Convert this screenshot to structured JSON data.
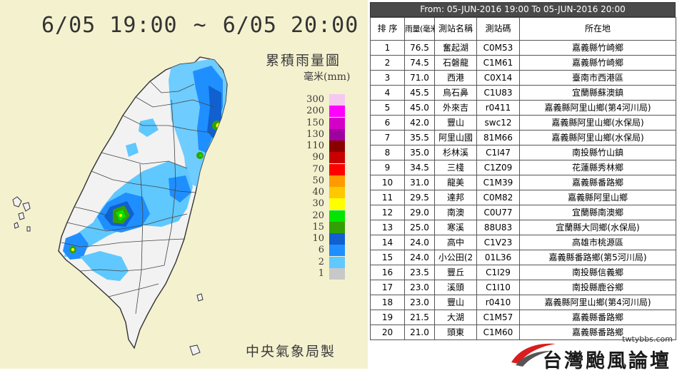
{
  "map": {
    "title_start": "6/05 19:00",
    "title_sep": "~",
    "title_end": "6/05 20:00",
    "legend_title": "累積雨量圖",
    "legend_unit": "毫米(mm)",
    "credit": "中央氣象局製",
    "legend": [
      {
        "label": "300",
        "color": "#f5c8f0"
      },
      {
        "label": "200",
        "color": "#ff00ff"
      },
      {
        "label": "150",
        "color": "#d400c8"
      },
      {
        "label": "130",
        "color": "#a000a0"
      },
      {
        "label": "110",
        "color": "#8a0000"
      },
      {
        "label": "90",
        "color": "#c80000"
      },
      {
        "label": "70",
        "color": "#ff0000"
      },
      {
        "label": "50",
        "color": "#ff9a00"
      },
      {
        "label": "40",
        "color": "#ffc800"
      },
      {
        "label": "30",
        "color": "#ffff00"
      },
      {
        "label": "20",
        "color": "#00e600"
      },
      {
        "label": "15",
        "color": "#32a000"
      },
      {
        "label": "10",
        "color": "#1060d0"
      },
      {
        "label": "6",
        "color": "#1f8fff"
      },
      {
        "label": "2",
        "color": "#5fc8ff"
      },
      {
        "label": "1",
        "color": "#c8c8c8"
      }
    ]
  },
  "table": {
    "header": "From: 05-JUN-2016 19:00 To 05-JUN-2016 20:00",
    "columns": [
      "排 序",
      "雨量(毫米)",
      "測站名稱",
      "測站碼",
      "所在地"
    ],
    "rows": [
      [
        "1",
        "76.5",
        "奮起湖",
        "C0M53",
        "嘉義縣竹崎鄉"
      ],
      [
        "2",
        "74.5",
        "石磐龍",
        "C1M61",
        "嘉義縣竹崎鄉"
      ],
      [
        "3",
        "71.0",
        "西港",
        "C0X14",
        "臺南市西港區"
      ],
      [
        "4",
        "45.5",
        "烏石鼻",
        "C1U83",
        "宜蘭縣蘇澳鎮"
      ],
      [
        "5",
        "45.0",
        "外來吉",
        "r0411",
        "嘉義縣阿里山鄉(第4河川局)"
      ],
      [
        "6",
        "42.0",
        "豐山",
        "swc12",
        "嘉義縣阿里山鄉(水保局)"
      ],
      [
        "7",
        "35.5",
        "阿里山國",
        "81M66",
        "嘉義縣阿里山鄉(水保局)"
      ],
      [
        "8",
        "35.0",
        "杉林溪",
        "C1I47",
        "南投縣竹山鎮"
      ],
      [
        "9",
        "34.5",
        "三棧",
        "C1Z09",
        "花蓮縣秀林鄉"
      ],
      [
        "10",
        "31.0",
        "龍美",
        "C1M39",
        "嘉義縣番路鄉"
      ],
      [
        "11",
        "29.5",
        "達邦",
        "C0M82",
        "嘉義縣阿里山鄉"
      ],
      [
        "12",
        "29.0",
        "南澳",
        "C0U77",
        "宜蘭縣南澳鄉"
      ],
      [
        "13",
        "25.0",
        "寒溪",
        "88U83",
        "宜蘭縣大同鄉(水保局)"
      ],
      [
        "14",
        "24.0",
        "高中",
        "C1V23",
        "高雄市桃源區"
      ],
      [
        "15",
        "24.0",
        "小公田(2",
        "01L36",
        "嘉義縣番路鄉(第5河川局)"
      ],
      [
        "16",
        "23.5",
        "豐丘",
        "C1I29",
        "南投縣信義鄉"
      ],
      [
        "17",
        "23.0",
        "溪頭",
        "C1I10",
        "南投縣鹿谷鄉"
      ],
      [
        "18",
        "23.0",
        "豐山",
        "r0410",
        "嘉義縣阿里山鄉(第4河川局)"
      ],
      [
        "19",
        "21.5",
        "大湖",
        "C1M57",
        "嘉義縣番路鄉"
      ],
      [
        "20",
        "21.0",
        "頭東",
        "C1M60",
        "嘉義縣番路鄉"
      ]
    ]
  },
  "logo": {
    "url": "twtybbs.com",
    "text": "台灣颱風論壇"
  }
}
